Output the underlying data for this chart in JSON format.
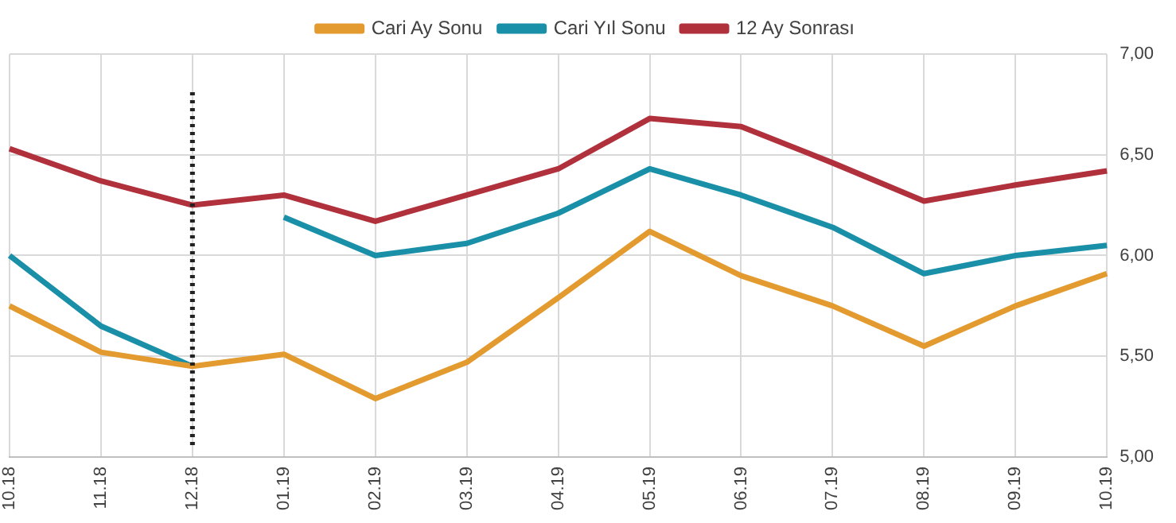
{
  "chart_data": {
    "type": "line",
    "categories": [
      "10.18",
      "11.18",
      "12.18",
      "01.19",
      "02.19",
      "03.19",
      "04.19",
      "05.19",
      "06.19",
      "07.19",
      "08.19",
      "09.19",
      "10.19"
    ],
    "series": [
      {
        "name": "Cari Ay Sonu",
        "color": "#e39b2f",
        "values": [
          5.75,
          5.52,
          5.45,
          5.51,
          5.29,
          5.47,
          5.79,
          6.12,
          5.9,
          5.75,
          5.55,
          5.75,
          5.91
        ]
      },
      {
        "name": "Cari Yıl Sonu",
        "color": "#1a8fa8",
        "values": [
          6.0,
          5.65,
          5.45,
          null,
          null,
          null,
          null,
          null,
          null,
          null,
          null,
          null,
          null
        ]
      },
      {
        "color": "#1a8fa8",
        "values": [
          null,
          null,
          null,
          6.19,
          6.0,
          6.06,
          6.21,
          6.43,
          6.3,
          6.14,
          5.91,
          6.0,
          6.05
        ]
      },
      {
        "name": "12 Ay Sonrası",
        "color": "#b0303c",
        "values": [
          6.53,
          6.37,
          6.25,
          6.3,
          6.17,
          6.3,
          6.43,
          6.68,
          6.64,
          6.46,
          6.27,
          6.35,
          6.42
        ]
      }
    ],
    "ylim": [
      5,
      7
    ],
    "yticks": [
      {
        "value": 5,
        "label": "5,00"
      },
      {
        "value": 5.5,
        "label": "5,50"
      },
      {
        "value": 6,
        "label": "6,00"
      },
      {
        "value": 6.5,
        "label": "6,50"
      },
      {
        "value": 7,
        "label": "7,00"
      }
    ],
    "ref_lines": [
      {
        "axis": "x",
        "value": "12.18",
        "color": "#222222",
        "line_style": "dotted"
      }
    ],
    "grid": true,
    "legend": "top",
    "marker": "none",
    "line_style": "solid"
  }
}
